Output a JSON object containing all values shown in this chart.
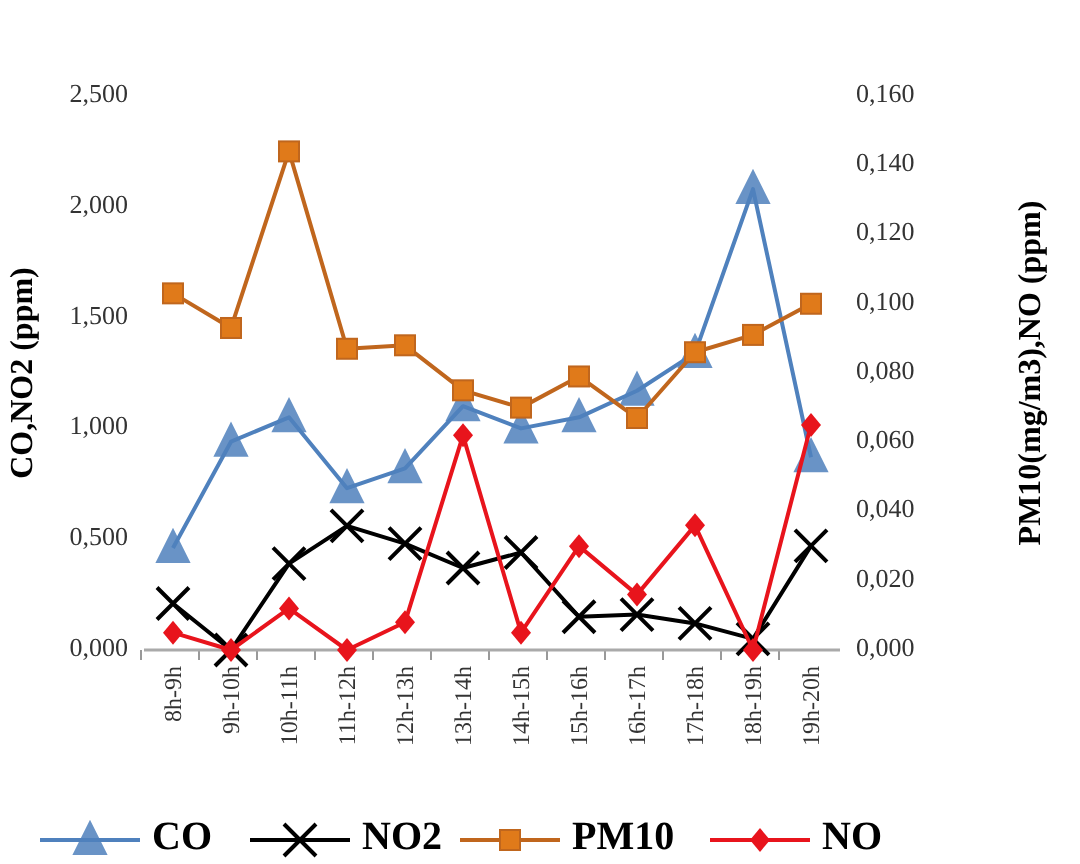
{
  "chart_data": {
    "type": "line",
    "ylabel": "CO,NO2 (ppm)",
    "y2label": "PM10(mg/m3),NO (ppm)",
    "categories": [
      "8h-9h",
      "9h-10h",
      "10h-11h",
      "11h-12h",
      "12h-13h",
      "13h-14h",
      "14h-15h",
      "15h-16h",
      "16h-17h",
      "17h-18h",
      "18h-19h",
      "19h-20h"
    ],
    "series": [
      {
        "name": "CO",
        "color": "#4f81bd",
        "marker": "triangle",
        "values": [
          0.46,
          0.94,
          1.05,
          0.73,
          0.82,
          1.1,
          1.0,
          1.05,
          1.17,
          1.34,
          2.08,
          0.87
        ]
      },
      {
        "name": "NO2",
        "color": "#000000",
        "marker": "cross",
        "values": [
          0.21,
          0.0,
          0.39,
          0.56,
          0.48,
          0.37,
          0.44,
          0.15,
          0.16,
          0.12,
          0.05,
          0.47
        ]
      },
      {
        "name": "PM10",
        "color": "#c0661d",
        "marker": "square",
        "axis": "y2",
        "values": [
          0.103,
          0.093,
          0.144,
          0.087,
          0.088,
          0.075,
          0.07,
          0.079,
          0.067,
          0.086,
          0.091,
          0.1
        ]
      },
      {
        "name": "NO",
        "color": "#e8141c",
        "marker": "diamond",
        "axis": "y2",
        "values": [
          0.005,
          0.0,
          0.012,
          0.0,
          0.008,
          0.062,
          0.005,
          0.03,
          0.016,
          0.036,
          0.0,
          0.065
        ]
      }
    ],
    "ylim": [
      0,
      2.5
    ],
    "yticks": [
      {
        "value": 0,
        "label": "0,000"
      },
      {
        "value": 0.5,
        "label": "0,500"
      },
      {
        "value": 1,
        "label": "1,000"
      },
      {
        "value": 1.5,
        "label": "1,500"
      },
      {
        "value": 2,
        "label": "2,000"
      },
      {
        "value": 2.5,
        "label": "2,500"
      }
    ],
    "y2lim": [
      0,
      0.16
    ],
    "y2ticks": [
      {
        "value": 0,
        "label": "0,000"
      },
      {
        "value": 0.02,
        "label": "0,020"
      },
      {
        "value": 0.04,
        "label": "0,040"
      },
      {
        "value": 0.06,
        "label": "0,060"
      },
      {
        "value": 0.08,
        "label": "0,080"
      },
      {
        "value": 0.1,
        "label": "0,100"
      },
      {
        "value": 0.12,
        "label": "0,120"
      },
      {
        "value": 0.14,
        "label": "0,140"
      },
      {
        "value": 0.16,
        "label": "0,160"
      }
    ],
    "grid": false,
    "legend": "bottom",
    "line_style": "solid"
  }
}
